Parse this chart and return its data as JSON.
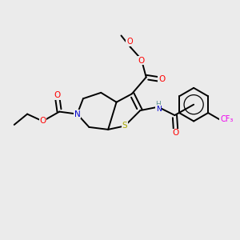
{
  "background_color": "#ebebeb",
  "fig_width": 3.0,
  "fig_height": 3.0,
  "dpi": 100,
  "atom_colors": {
    "C": "#000000",
    "N": "#0000cc",
    "O": "#ff0000",
    "S": "#aaaa00",
    "F": "#ee00ee",
    "H": "#5a9090"
  },
  "bond_color": "#000000",
  "bond_lw": 1.4
}
